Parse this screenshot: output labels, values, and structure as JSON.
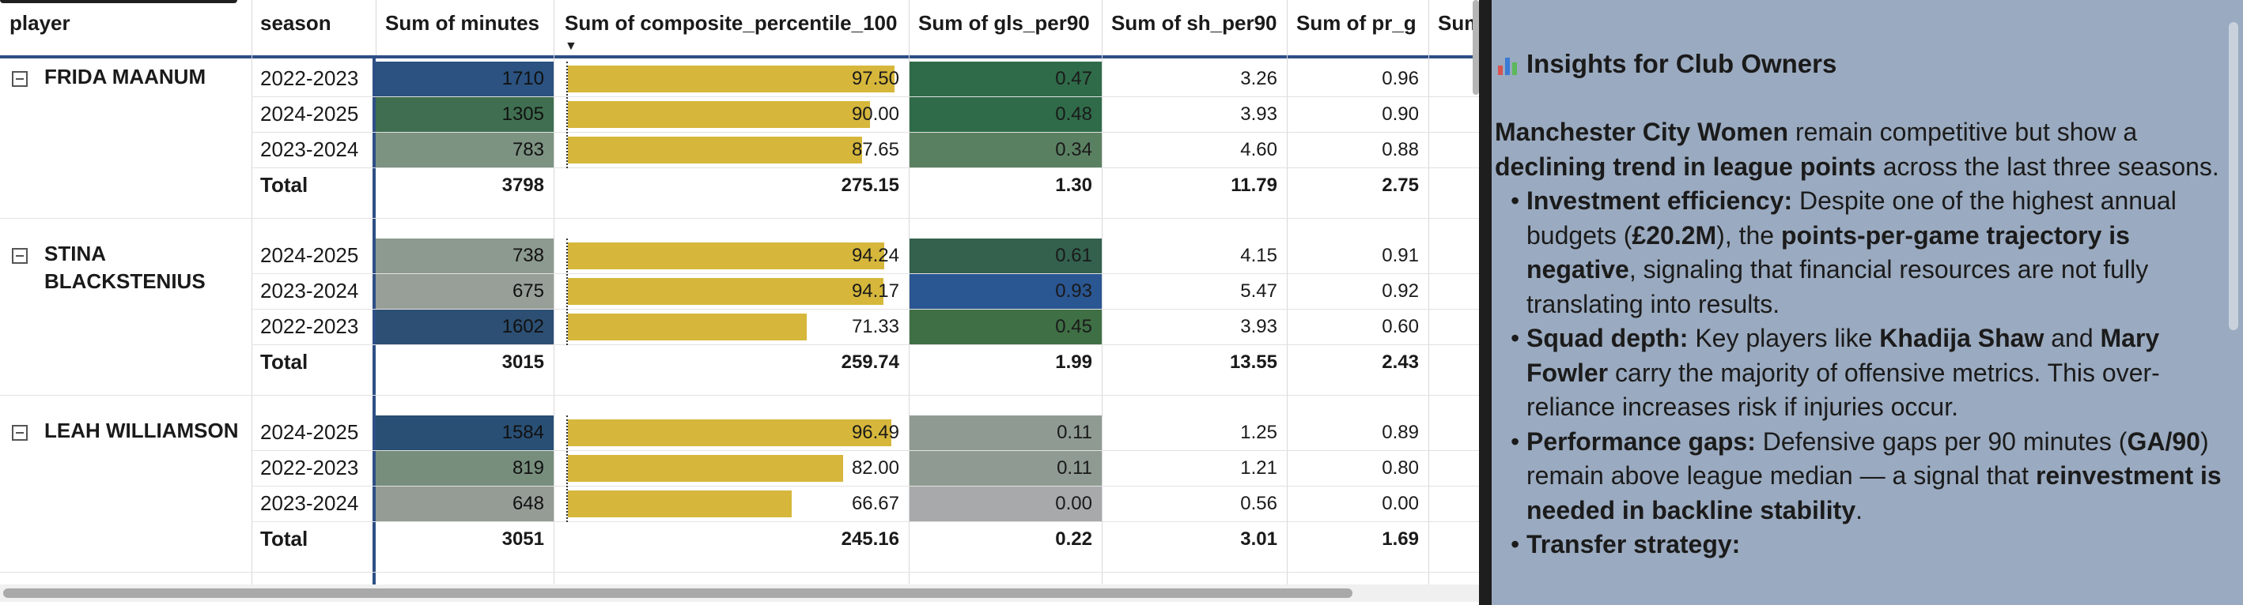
{
  "matrix": {
    "headers": {
      "player": "player",
      "season": "season",
      "minutes": "Sum of minutes",
      "composite": "Sum of composite_percentile_100",
      "gls": "Sum of gls_per90",
      "sh": "Sum of sh_per90",
      "pr": "Sum of pr_g",
      "next": "Sum"
    },
    "colors": {
      "header_rule": "#2e4f86",
      "bar": "#d6b73b"
    },
    "players": [
      {
        "name": "FRIDA MAANUM",
        "rows": [
          {
            "season": "2022-2023",
            "minutes": "1710",
            "composite": "97.50",
            "composite_value": 97.5,
            "gls": "0.47",
            "sh": "3.26",
            "pr": "0.96",
            "minutes_bg": "#2b5280",
            "gls_bg": "#2f6b49"
          },
          {
            "season": "2024-2025",
            "minutes": "1305",
            "composite": "90.00",
            "composite_value": 90.0,
            "gls": "0.48",
            "sh": "3.93",
            "pr": "0.90",
            "minutes_bg": "#3f6f50",
            "gls_bg": "#2f6b49"
          },
          {
            "season": "2023-2024",
            "minutes": "783",
            "composite": "87.65",
            "composite_value": 87.65,
            "gls": "0.34",
            "sh": "4.60",
            "pr": "0.88",
            "minutes_bg": "#7d9382",
            "gls_bg": "#5a8062"
          }
        ],
        "total": {
          "label": "Total",
          "minutes": "3798",
          "composite": "275.15",
          "gls": "1.30",
          "sh": "11.79",
          "pr": "2.75"
        }
      },
      {
        "name": "STINA BLACKSTENIUS",
        "rows": [
          {
            "season": "2024-2025",
            "minutes": "738",
            "composite": "94.24",
            "composite_value": 94.24,
            "gls": "0.61",
            "sh": "4.15",
            "pr": "0.91",
            "minutes_bg": "#8d9a8f",
            "gls_bg": "#33614e"
          },
          {
            "season": "2023-2024",
            "minutes": "675",
            "composite": "94.17",
            "composite_value": 94.17,
            "gls": "0.93",
            "sh": "5.47",
            "pr": "0.92",
            "minutes_bg": "#979f98",
            "gls_bg": "#2a5692"
          },
          {
            "season": "2022-2023",
            "minutes": "1602",
            "composite": "71.33",
            "composite_value": 71.33,
            "gls": "0.45",
            "sh": "3.93",
            "pr": "0.60",
            "minutes_bg": "#2c4f73",
            "gls_bg": "#3f7045"
          }
        ],
        "total": {
          "label": "Total",
          "minutes": "3015",
          "composite": "259.74",
          "gls": "1.99",
          "sh": "13.55",
          "pr": "2.43"
        }
      },
      {
        "name": "LEAH WILLIAMSON",
        "rows": [
          {
            "season": "2024-2025",
            "minutes": "1584",
            "composite": "96.49",
            "composite_value": 96.49,
            "gls": "0.11",
            "sh": "1.25",
            "pr": "0.89",
            "minutes_bg": "#294f74",
            "gls_bg": "#8f9b92"
          },
          {
            "season": "2022-2023",
            "minutes": "819",
            "composite": "82.00",
            "composite_value": 82.0,
            "gls": "0.11",
            "sh": "1.21",
            "pr": "0.80",
            "minutes_bg": "#778e7d",
            "gls_bg": "#8f9b92"
          },
          {
            "season": "2023-2024",
            "minutes": "648",
            "composite": "66.67",
            "composite_value": 66.67,
            "gls": "0.00",
            "sh": "0.56",
            "pr": "0.00",
            "minutes_bg": "#959c96",
            "gls_bg": "#a8a9ab"
          }
        ],
        "total": {
          "label": "Total",
          "minutes": "3051",
          "composite": "245.16",
          "gls": "0.22",
          "sh": "3.01",
          "pr": "1.69"
        }
      }
    ]
  },
  "insights": {
    "title": "Insights for Club Owners",
    "icon": "bar-chart-icon",
    "intro": {
      "t1": "Manchester City Women",
      "t2": " remain competitive but show a ",
      "t3": "declining trend in league points",
      "t4": " across the last three seasons."
    },
    "bullets": {
      "b1": {
        "t1": "Investment efficiency:",
        "t2": " Despite one of the highest annual budgets (",
        "t3": "£20.2M",
        "t4": "), the ",
        "t5": "points-per-game trajectory is negative",
        "t6": ", signaling that financial resources are not fully translating into results."
      },
      "b2": {
        "t1": "Squad depth:",
        "t2": " Key players like ",
        "t3": "Khadija Shaw",
        "t4": " and ",
        "t5": "Mary Fowler",
        "t6": " carry the majority of offensive metrics. This over-reliance increases risk if injuries occur."
      },
      "b3": {
        "t1": "Performance gaps:",
        "t2": " Defensive gaps per 90 minutes (",
        "t3": "GA/90",
        "t4": ") remain above league median — a signal that ",
        "t5": "reinvestment is needed in backline stability",
        "t6": "."
      },
      "b4": {
        "t1": "Transfer strategy:"
      }
    }
  }
}
